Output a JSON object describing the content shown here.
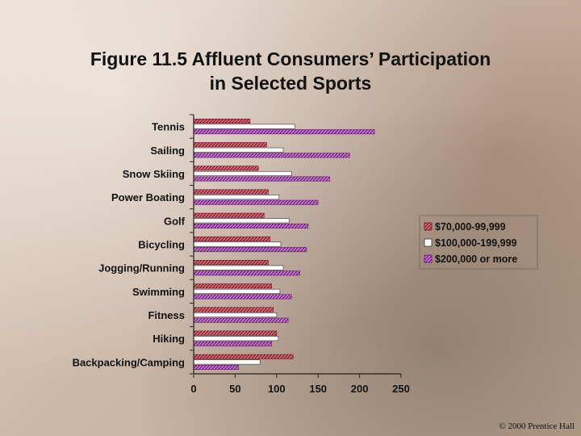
{
  "title_line1": "Figure 11.5  Affluent Consumers’ Participation",
  "title_line2": "in Selected Sports",
  "copyright": "© 2000 Prentice Hall",
  "chart_data": {
    "type": "bar",
    "orientation": "horizontal",
    "title": "Figure 11.5 Affluent Consumers’ Participation in Selected Sports",
    "categories": [
      "Tennis",
      "Sailing",
      "Snow Skiing",
      "Power Boating",
      "Golf",
      "Bicycling",
      "Jogging/Running",
      "Swimming",
      "Fitness",
      "Hiking",
      "Backpacking/Camping"
    ],
    "series": [
      {
        "name": "$70,000-99,999",
        "color": "#b03040",
        "values": [
          68,
          88,
          78,
          90,
          85,
          92,
          90,
          94,
          96,
          100,
          120
        ]
      },
      {
        "name": "$100,000-199,999",
        "color": "#ffffff",
        "values": [
          122,
          108,
          118,
          103,
          115,
          105,
          108,
          104,
          100,
          102,
          80
        ]
      },
      {
        "name": "$200,000 or more",
        "color": "#a23aa8",
        "values": [
          218,
          188,
          164,
          150,
          138,
          136,
          128,
          118,
          114,
          94,
          54
        ]
      }
    ],
    "xticks": [
      0,
      50,
      100,
      150,
      200,
      250
    ],
    "xlim": [
      0,
      250
    ],
    "grid": false,
    "legend": "right"
  }
}
